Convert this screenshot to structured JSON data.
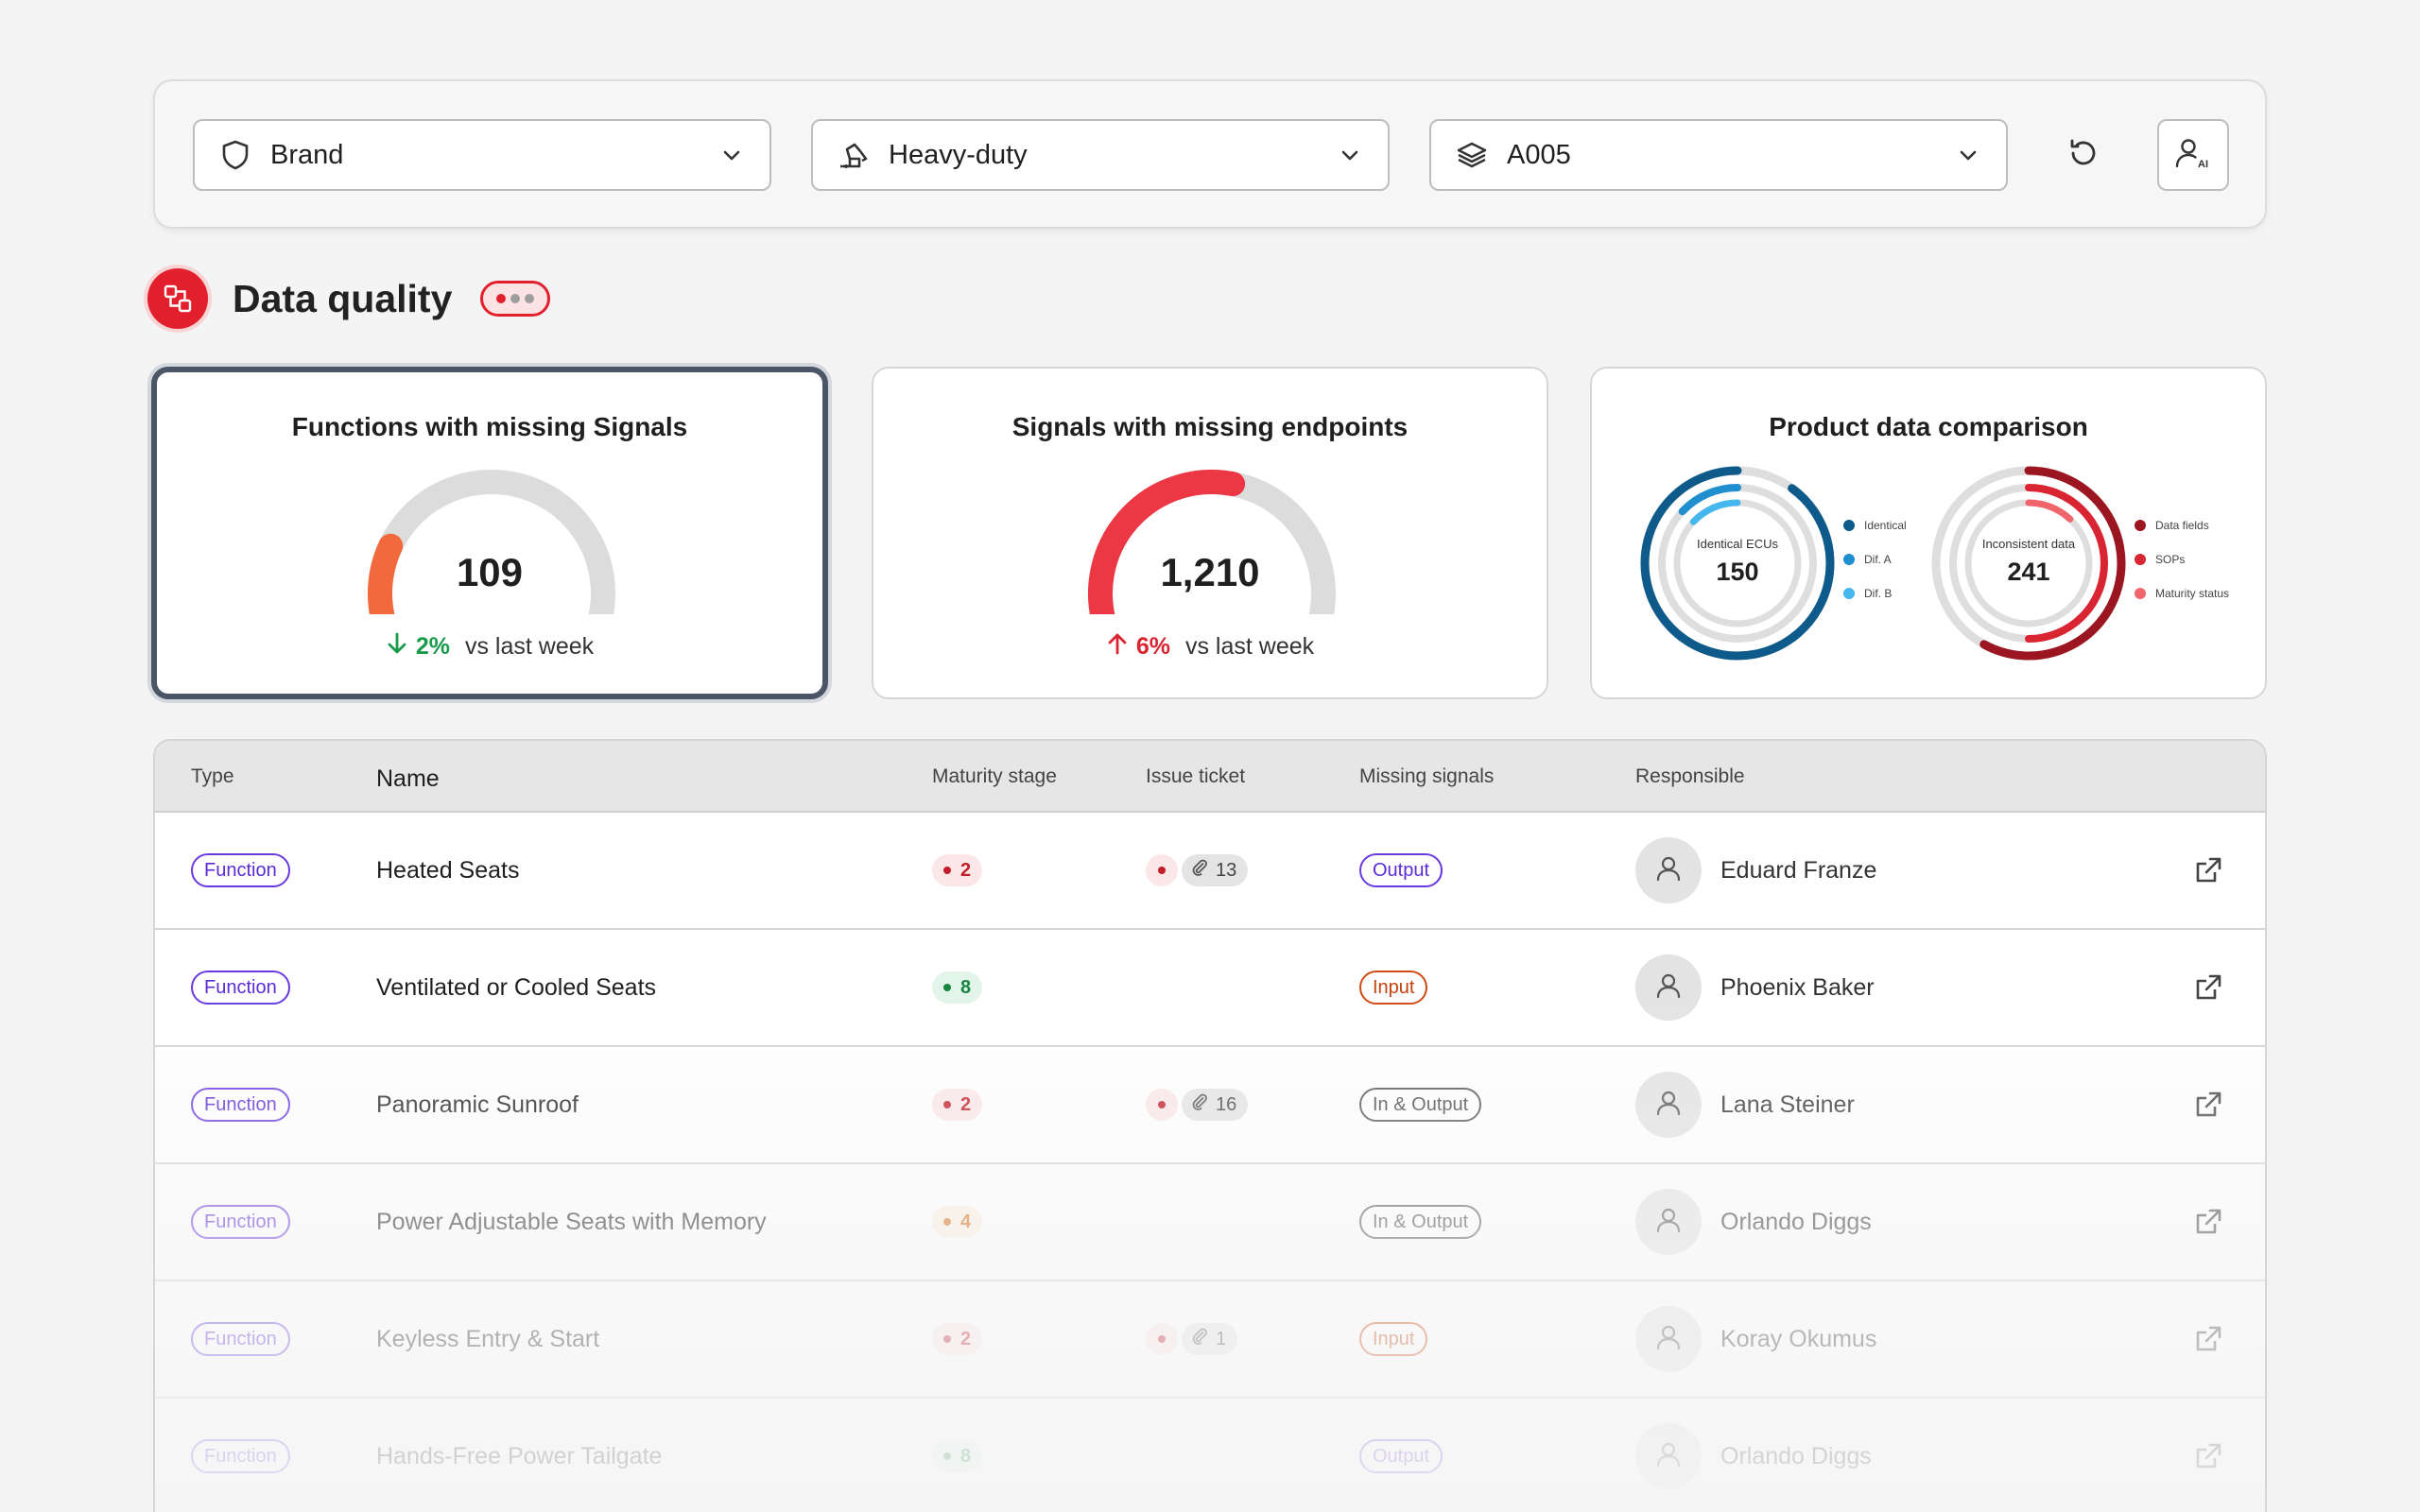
{
  "filters": {
    "brand": {
      "label": "Brand",
      "icon": "shield-icon"
    },
    "segment": {
      "label": "Heavy-duty",
      "icon": "excavator-icon"
    },
    "variant": {
      "label": "A005",
      "icon": "layers-icon"
    },
    "reset_icon": "reset-icon",
    "ai_icon": "user-ai-icon",
    "ai_badge": "AI"
  },
  "section": {
    "title": "Data quality",
    "icon": "data-quality-icon"
  },
  "cards": [
    {
      "title": "Functions with missing Signals",
      "value": "109",
      "gauge_fraction": 0.2,
      "gauge_color": "#f26a3c",
      "trend_dir": "down",
      "trend_pct": "2%",
      "trend_label": "vs last week"
    },
    {
      "title": "Signals with missing endpoints",
      "value": "1,210",
      "gauge_fraction": 0.55,
      "gauge_color": "#ec3744",
      "trend_dir": "up",
      "trend_pct": "6%",
      "trend_label": "vs last week"
    },
    {
      "title": "Product data comparison",
      "donuts": [
        {
          "label": "Identical ECUs",
          "value": "150",
          "legend": [
            {
              "name": "Identical",
              "color": "#0d5a8b"
            },
            {
              "name": "Dif. A",
              "color": "#1f8fd0"
            },
            {
              "name": "Dif. B",
              "color": "#44b8ee"
            }
          ],
          "arcs": [
            0.9,
            0.13,
            0.13
          ]
        },
        {
          "label": "Inconsistent data",
          "value": "241",
          "legend": [
            {
              "name": "Data fields",
              "color": "#9b1620"
            },
            {
              "name": "SOPs",
              "color": "#d92532"
            },
            {
              "name": "Maturity status",
              "color": "#f0646c"
            }
          ],
          "arcs": [
            0.58,
            0.5,
            0.12
          ]
        }
      ]
    }
  ],
  "table": {
    "headers": [
      "Type",
      "Name",
      "Maturity stage",
      "Issue ticket",
      "Missing signals",
      "Responsible"
    ],
    "rows": [
      {
        "type": "Function",
        "name": "Heated Seats",
        "maturity": "2",
        "maturity_color": "red",
        "issue": "13",
        "missing": "Output",
        "missing_style": "out",
        "responsible": "Eduard Franze",
        "opacity": 1
      },
      {
        "type": "Function",
        "name": "Ventilated or Cooled Seats",
        "maturity": "8",
        "maturity_color": "green",
        "issue": "",
        "missing": "Input",
        "missing_style": "in",
        "responsible": "Phoenix Baker",
        "opacity": 1
      },
      {
        "type": "Function",
        "name": "Panoramic Sunroof",
        "maturity": "2",
        "maturity_color": "red",
        "issue": "16",
        "missing": "In & Output",
        "missing_style": "inout",
        "responsible": "Lana Steiner",
        "opacity": 1
      },
      {
        "type": "Function",
        "name": "Power Adjustable Seats with Memory",
        "maturity": "4",
        "maturity_color": "orange",
        "issue": "",
        "missing": "In & Output",
        "missing_style": "inout",
        "responsible": "Orlando Diggs",
        "opacity": 1
      },
      {
        "type": "Function",
        "name": "Keyless Entry & Start",
        "maturity": "2",
        "maturity_color": "red",
        "issue": "1",
        "missing": "Input",
        "missing_style": "in",
        "responsible": "Koray Okumus",
        "opacity": 1
      },
      {
        "type": "Function",
        "name": "Hands-Free Power Tailgate",
        "maturity": "8",
        "maturity_color": "green",
        "issue": "",
        "missing": "Output",
        "missing_style": "out",
        "responsible": "Orlando Diggs",
        "opacity": 1
      }
    ]
  }
}
